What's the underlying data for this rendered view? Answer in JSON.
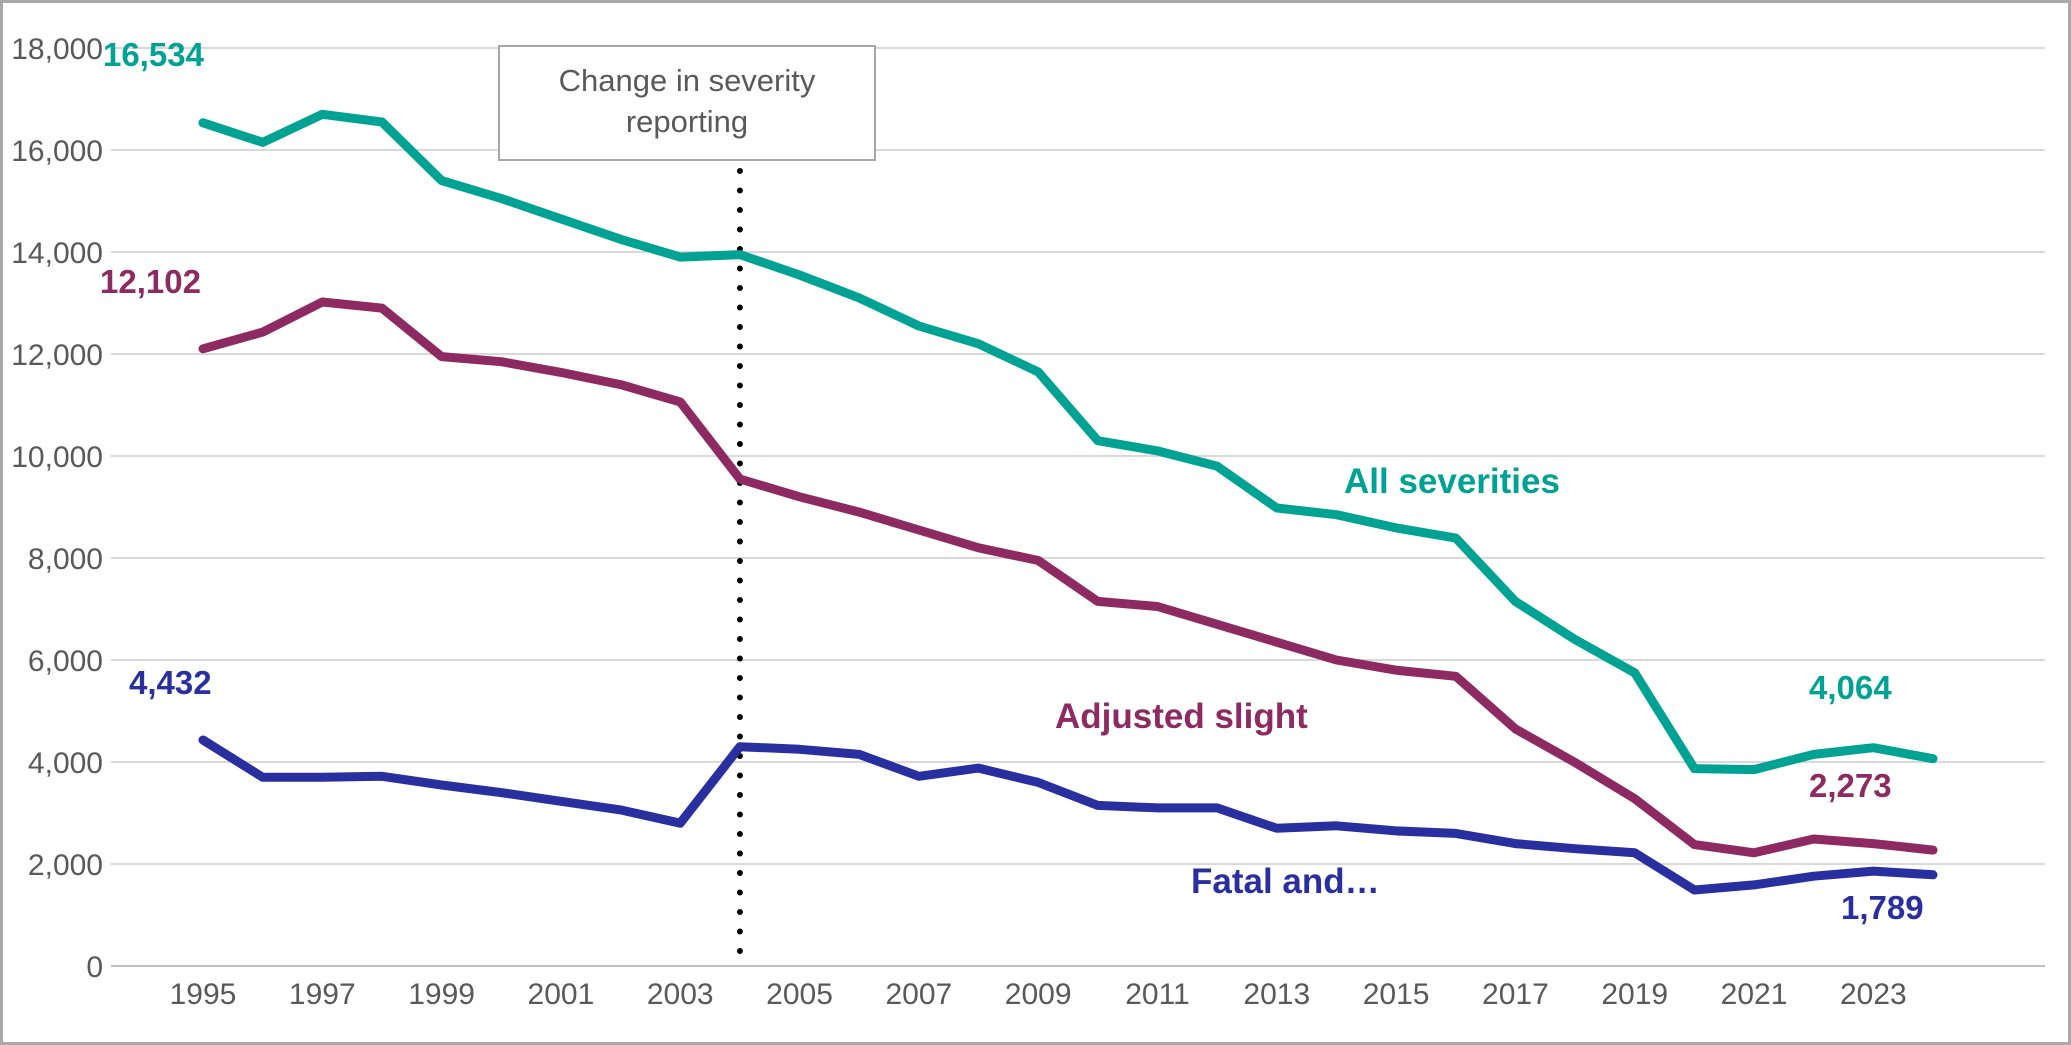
{
  "colors": {
    "teal": "#00a294",
    "plum": "#8e2a62",
    "navy": "#292f9e",
    "tick_text": "#595959",
    "gridline": "#d9d9d9",
    "baseline": "#bfbfbf",
    "dotted_line": "#000000",
    "frame_border": "#a9a9a9",
    "annotation_border": "#a6a6a6"
  },
  "labels": {
    "start_all": "16,534",
    "start_slight": "12,102",
    "start_fatal": "4,432",
    "end_all": "4,064",
    "end_slight": "2,273",
    "end_fatal": "1,789",
    "series_all": "All severities",
    "series_slight": "Adjusted slight",
    "series_fatal": "Fatal and…"
  },
  "chart_data": {
    "type": "line",
    "title": "",
    "xlabel": "",
    "ylabel": "",
    "grid": true,
    "ylim": [
      0,
      18000
    ],
    "y_tick_step": 2000,
    "x": [
      1995,
      1996,
      1997,
      1998,
      1999,
      2000,
      2001,
      2002,
      2003,
      2004,
      2005,
      2006,
      2007,
      2008,
      2009,
      2010,
      2011,
      2012,
      2013,
      2014,
      2015,
      2016,
      2017,
      2018,
      2019,
      2020,
      2021,
      2022,
      2023,
      2024
    ],
    "x_ticks": [
      {
        "year": 1995,
        "label": "1995"
      },
      {
        "year": 1997,
        "label": "1997"
      },
      {
        "year": 1999,
        "label": "1999"
      },
      {
        "year": 2001,
        "label": "2001"
      },
      {
        "year": 2003,
        "label": "2003"
      },
      {
        "year": 2005,
        "label": "2005"
      },
      {
        "year": 2007,
        "label": "2007"
      },
      {
        "year": 2009,
        "label": "2009"
      },
      {
        "year": 2011,
        "label": "2011"
      },
      {
        "year": 2013,
        "label": "2013"
      },
      {
        "year": 2015,
        "label": "2015"
      },
      {
        "year": 2017,
        "label": "2017"
      },
      {
        "year": 2019,
        "label": "2019"
      },
      {
        "year": 2021,
        "label": "2021"
      },
      {
        "year": 2023,
        "label": "2023"
      }
    ],
    "y_ticks": [
      {
        "v": 0,
        "label": "0"
      },
      {
        "v": 2000,
        "label": "2,000"
      },
      {
        "v": 4000,
        "label": "4,000"
      },
      {
        "v": 6000,
        "label": "6,000"
      },
      {
        "v": 8000,
        "label": "8,000"
      },
      {
        "v": 10000,
        "label": "10,000"
      },
      {
        "v": 12000,
        "label": "12,000"
      },
      {
        "v": 14000,
        "label": "14,000"
      },
      {
        "v": 16000,
        "label": "16,000"
      },
      {
        "v": 18000,
        "label": "18,000"
      }
    ],
    "series": [
      {
        "name": "All severities",
        "color": "#00a294",
        "values": [
          16534,
          16150,
          16700,
          16550,
          15400,
          15050,
          14650,
          14250,
          13900,
          13950,
          13550,
          13100,
          12550,
          12200,
          11650,
          10300,
          10100,
          9800,
          8980,
          8850,
          8590,
          8390,
          7150,
          6400,
          5750,
          3870,
          3850,
          4150,
          4280,
          4064
        ]
      },
      {
        "name": "Adjusted slight",
        "color": "#8e2a62",
        "values": [
          12102,
          12430,
          13020,
          12900,
          11950,
          11850,
          11640,
          11400,
          11060,
          9550,
          9200,
          8900,
          8550,
          8200,
          7950,
          7150,
          7050,
          6700,
          6350,
          6000,
          5800,
          5680,
          4650,
          3990,
          3280,
          2380,
          2220,
          2490,
          2400,
          2273
        ]
      },
      {
        "name": "Fatal and serious",
        "color": "#292f9e",
        "values": [
          4432,
          3700,
          3700,
          3720,
          3550,
          3400,
          3230,
          3060,
          2800,
          4300,
          4250,
          4150,
          3720,
          3880,
          3600,
          3150,
          3100,
          3100,
          2700,
          2750,
          2650,
          2600,
          2400,
          2300,
          2220,
          1490,
          1590,
          1760,
          1860,
          1789
        ]
      }
    ],
    "annotation": {
      "text": "Change in severity reporting",
      "x_year": 2004
    }
  }
}
